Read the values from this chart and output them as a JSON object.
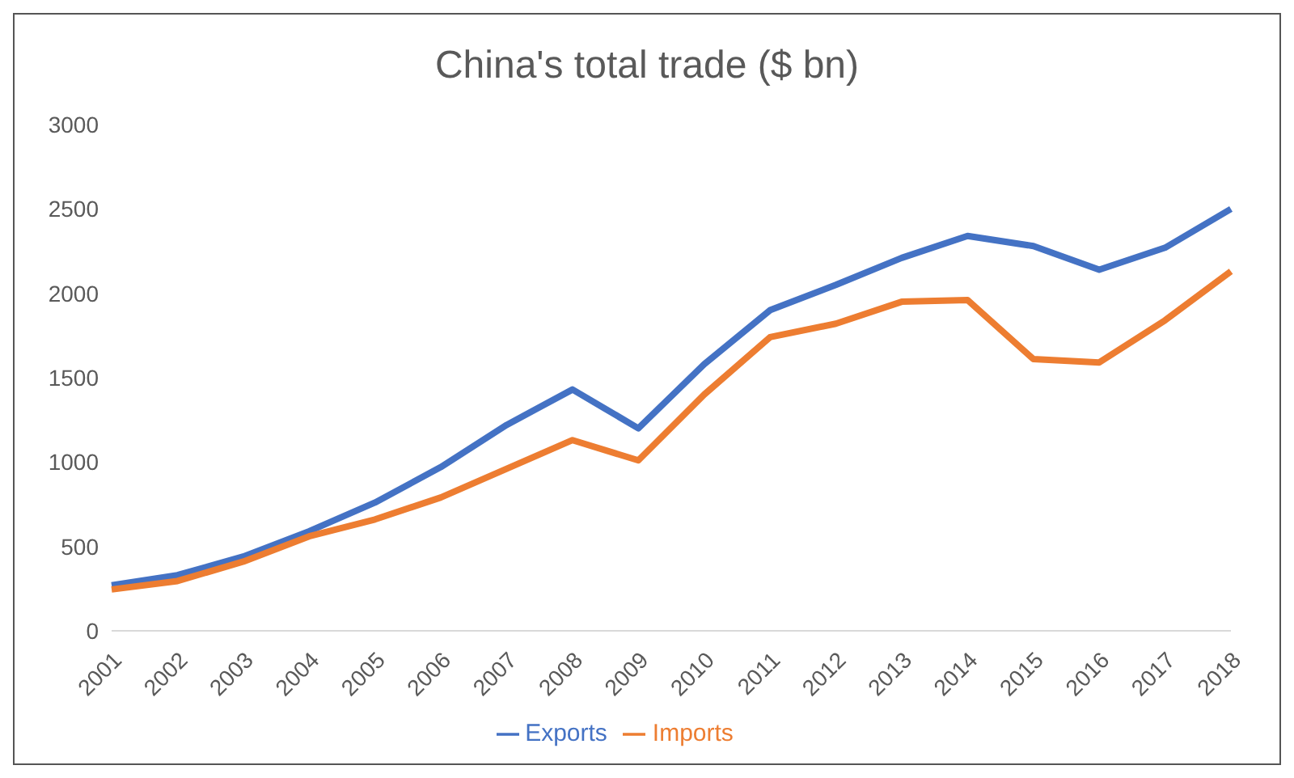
{
  "chart_data": {
    "type": "line",
    "title": "China's total trade ($ bn)",
    "categories": [
      "2001",
      "2002",
      "2003",
      "2004",
      "2005",
      "2006",
      "2007",
      "2008",
      "2009",
      "2010",
      "2011",
      "2012",
      "2013",
      "2014",
      "2015",
      "2016",
      "2017",
      "2018"
    ],
    "series": [
      {
        "name": "Exports",
        "color": "#4472c4",
        "values": [
          270,
          330,
          440,
          590,
          760,
          970,
          1220,
          1430,
          1200,
          1580,
          1900,
          2050,
          2210,
          2340,
          2280,
          2140,
          2270,
          2500
        ]
      },
      {
        "name": "Imports",
        "color": "#ed7d31",
        "values": [
          245,
          295,
          410,
          560,
          660,
          790,
          960,
          1130,
          1010,
          1400,
          1740,
          1820,
          1950,
          1960,
          1610,
          1590,
          1840,
          2130
        ]
      }
    ],
    "ylim": [
      0,
      3000
    ],
    "yticks": [
      0,
      500,
      1000,
      1500,
      2000,
      2500,
      3000
    ],
    "grid": false,
    "legend": "bottom",
    "marker": "none",
    "line_style": "solid"
  }
}
